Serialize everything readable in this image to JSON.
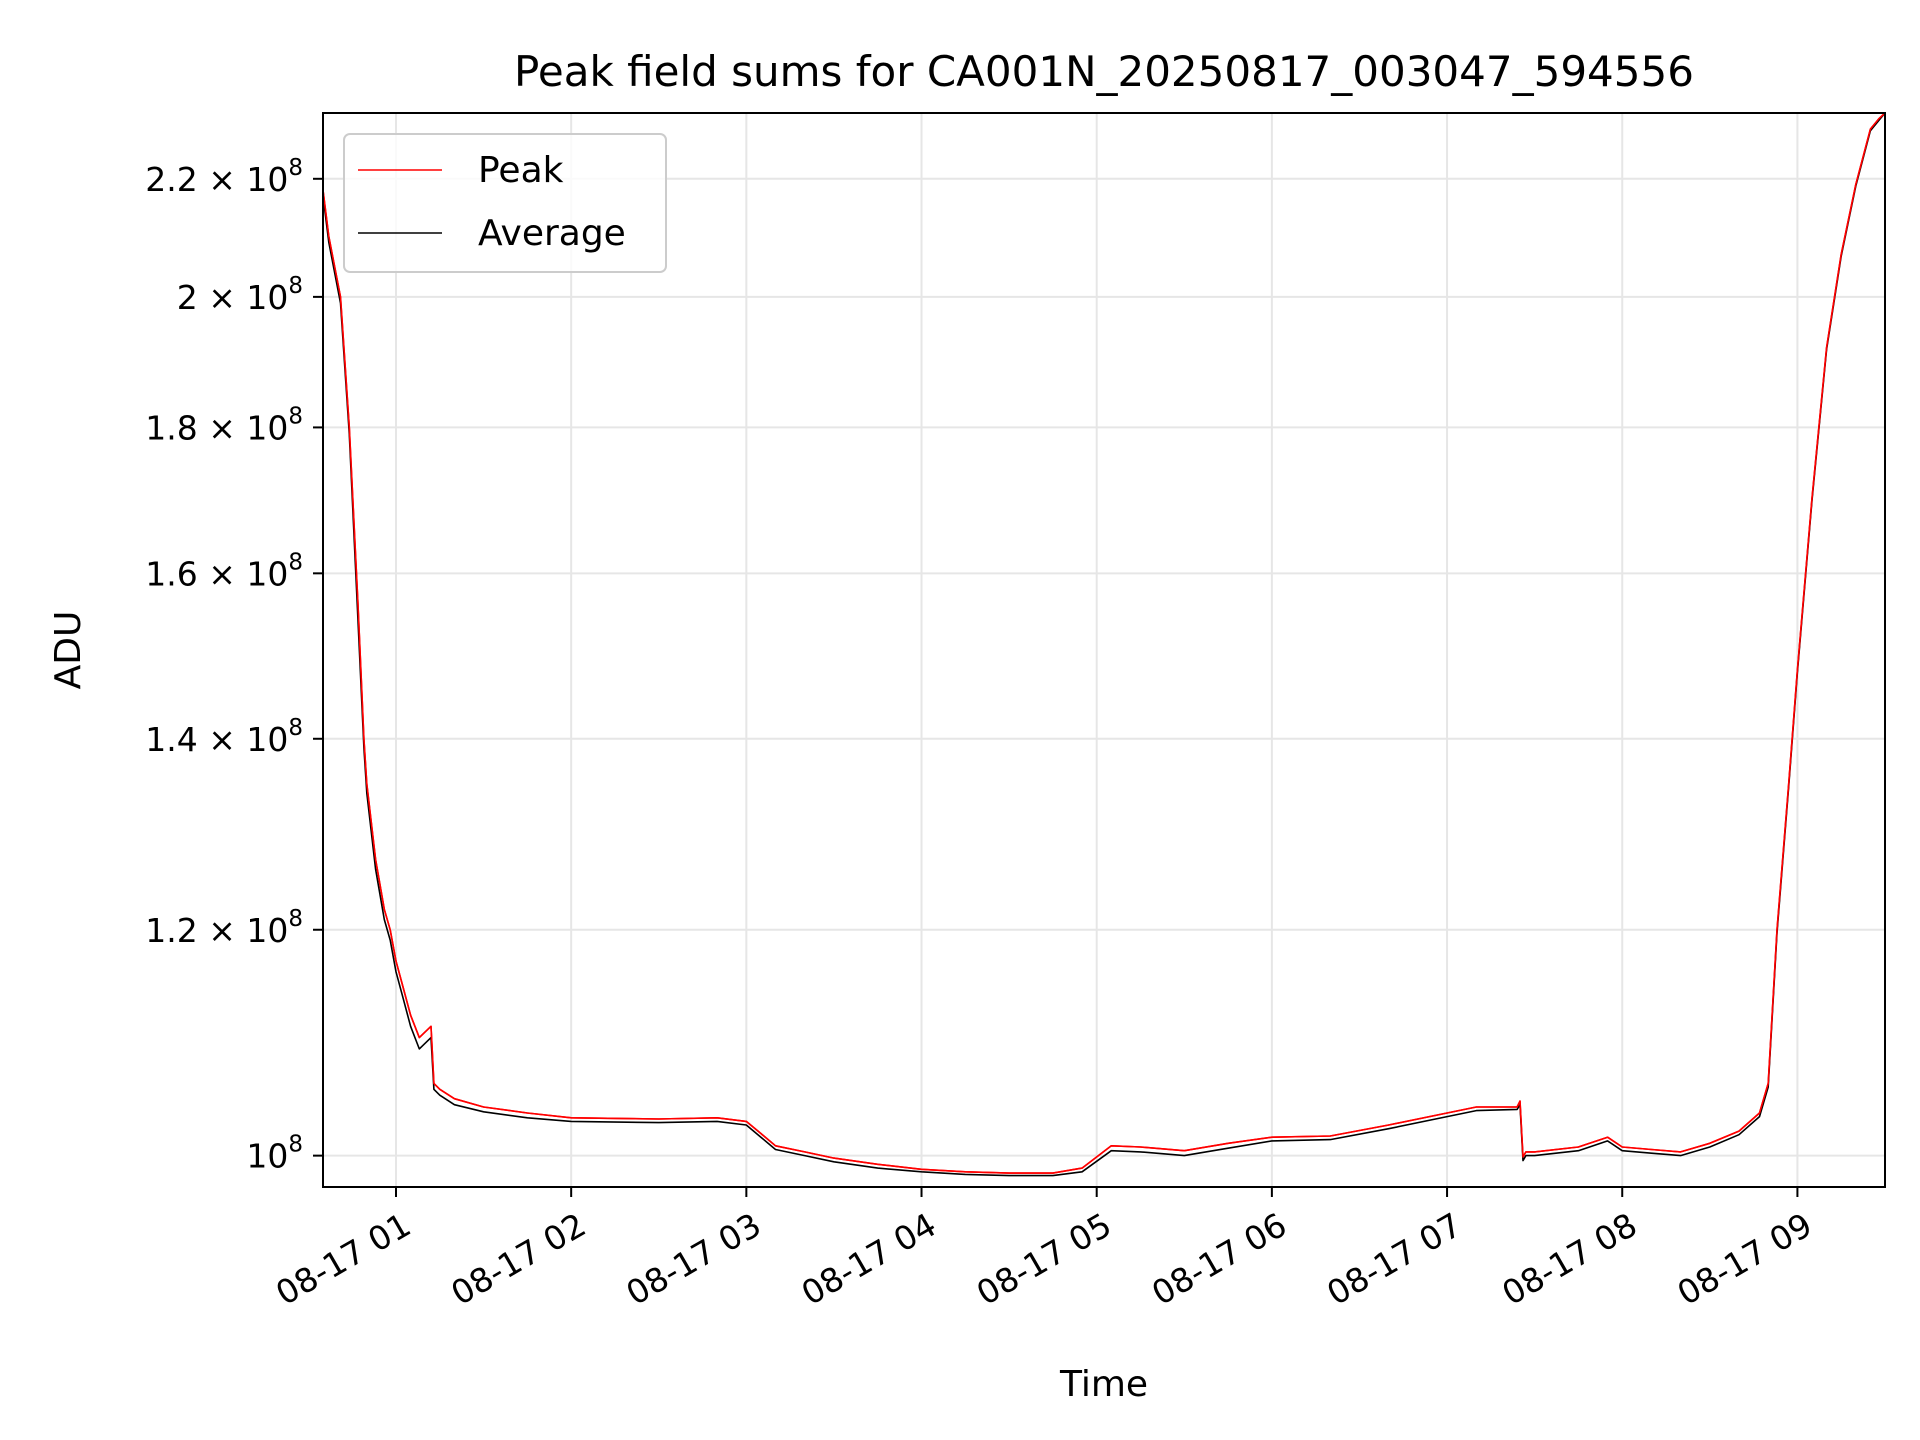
{
  "chart_data": {
    "type": "line",
    "title": "Peak field sums for CA001N_20250817_003047_594556",
    "xlabel": "Time",
    "ylabel": "ADU",
    "yscale": "log",
    "grid": true,
    "legend_position": "top-left",
    "xlim": [
      "2025-08-17 00:35",
      "2025-08-17 09:30"
    ],
    "ylim": [
      97500000,
      232000000
    ],
    "x_ticks": [
      {
        "value": "2025-08-17 01:00",
        "label": "08-17 01"
      },
      {
        "value": "2025-08-17 02:00",
        "label": "08-17 02"
      },
      {
        "value": "2025-08-17 03:00",
        "label": "08-17 03"
      },
      {
        "value": "2025-08-17 04:00",
        "label": "08-17 04"
      },
      {
        "value": "2025-08-17 05:00",
        "label": "08-17 05"
      },
      {
        "value": "2025-08-17 06:00",
        "label": "08-17 06"
      },
      {
        "value": "2025-08-17 07:00",
        "label": "08-17 07"
      },
      {
        "value": "2025-08-17 08:00",
        "label": "08-17 08"
      },
      {
        "value": "2025-08-17 09:00",
        "label": "08-17 09"
      }
    ],
    "y_ticks": [
      {
        "value": 100000000,
        "mantissa": "",
        "exponent": "8"
      },
      {
        "value": 120000000,
        "mantissa": "1.2",
        "exponent": "8"
      },
      {
        "value": 140000000,
        "mantissa": "1.4",
        "exponent": "8"
      },
      {
        "value": 160000000,
        "mantissa": "1.6",
        "exponent": "8"
      },
      {
        "value": 180000000,
        "mantissa": "1.8",
        "exponent": "8"
      },
      {
        "value": 200000000,
        "mantissa": "2",
        "exponent": "8"
      },
      {
        "value": 220000000,
        "mantissa": "2.2",
        "exponent": "8"
      }
    ],
    "series": [
      {
        "name": "Peak",
        "color": "#ff0000",
        "x": [
          "2025-08-17 00:35",
          "2025-08-17 00:37",
          "2025-08-17 00:41",
          "2025-08-17 00:44",
          "2025-08-17 00:47",
          "2025-08-17 00:49",
          "2025-08-17 00:50",
          "2025-08-17 00:53",
          "2025-08-17 00:56",
          "2025-08-17 00:58",
          "2025-08-17 01:00",
          "2025-08-17 01:02",
          "2025-08-17 01:05",
          "2025-08-17 01:08",
          "2025-08-17 01:12",
          "2025-08-17 01:13",
          "2025-08-17 01:15",
          "2025-08-17 01:20",
          "2025-08-17 01:30",
          "2025-08-17 01:45",
          "2025-08-17 02:00",
          "2025-08-17 02:30",
          "2025-08-17 02:50",
          "2025-08-17 03:00",
          "2025-08-17 03:05",
          "2025-08-17 03:10",
          "2025-08-17 03:20",
          "2025-08-17 03:30",
          "2025-08-17 03:45",
          "2025-08-17 04:00",
          "2025-08-17 04:15",
          "2025-08-17 04:30",
          "2025-08-17 04:45",
          "2025-08-17 04:55",
          "2025-08-17 05:05",
          "2025-08-17 05:15",
          "2025-08-17 05:30",
          "2025-08-17 05:45",
          "2025-08-17 06:00",
          "2025-08-17 06:20",
          "2025-08-17 06:40",
          "2025-08-17 07:00",
          "2025-08-17 07:10",
          "2025-08-17 07:24",
          "2025-08-17 07:25",
          "2025-08-17 07:26",
          "2025-08-17 07:27",
          "2025-08-17 07:30",
          "2025-08-17 07:45",
          "2025-08-17 07:55",
          "2025-08-17 08:00",
          "2025-08-17 08:10",
          "2025-08-17 08:20",
          "2025-08-17 08:30",
          "2025-08-17 08:40",
          "2025-08-17 08:47",
          "2025-08-17 08:50",
          "2025-08-17 08:53",
          "2025-08-17 08:57",
          "2025-08-17 09:00",
          "2025-08-17 09:05",
          "2025-08-17 09:10",
          "2025-08-17 09:15",
          "2025-08-17 09:20",
          "2025-08-17 09:25",
          "2025-08-17 09:28",
          "2025-08-17 09:30"
        ],
        "y": [
          218000000,
          210000000,
          200000000,
          180000000,
          156000000,
          140000000,
          135000000,
          127000000,
          122000000,
          120000000,
          117000000,
          115000000,
          112000000,
          110000000,
          111000000,
          106000000,
          105500000,
          104700000,
          104000000,
          103500000,
          103100000,
          103000000,
          103100000,
          102800000,
          101800000,
          100800000,
          100300000,
          99800000,
          99300000,
          98900000,
          98700000,
          98600000,
          98600000,
          99000000,
          100800000,
          100700000,
          100400000,
          101000000,
          101500000,
          101600000,
          102500000,
          103500000,
          104000000,
          104000000,
          104500000,
          99900000,
          100300000,
          100300000,
          100700000,
          101500000,
          100700000,
          100500000,
          100300000,
          101000000,
          102000000,
          103500000,
          106000000,
          120000000,
          135000000,
          148000000,
          170000000,
          192000000,
          207000000,
          219000000,
          229000000,
          231000000,
          232000000
        ]
      },
      {
        "name": "Average",
        "color": "#000000",
        "x": [
          "2025-08-17 00:35",
          "2025-08-17 00:37",
          "2025-08-17 00:41",
          "2025-08-17 00:44",
          "2025-08-17 00:47",
          "2025-08-17 00:49",
          "2025-08-17 00:50",
          "2025-08-17 00:53",
          "2025-08-17 00:56",
          "2025-08-17 00:58",
          "2025-08-17 01:00",
          "2025-08-17 01:02",
          "2025-08-17 01:05",
          "2025-08-17 01:08",
          "2025-08-17 01:12",
          "2025-08-17 01:13",
          "2025-08-17 01:15",
          "2025-08-17 01:20",
          "2025-08-17 01:30",
          "2025-08-17 01:45",
          "2025-08-17 02:00",
          "2025-08-17 02:30",
          "2025-08-17 02:50",
          "2025-08-17 03:00",
          "2025-08-17 03:05",
          "2025-08-17 03:10",
          "2025-08-17 03:20",
          "2025-08-17 03:30",
          "2025-08-17 03:45",
          "2025-08-17 04:00",
          "2025-08-17 04:15",
          "2025-08-17 04:30",
          "2025-08-17 04:45",
          "2025-08-17 04:55",
          "2025-08-17 05:05",
          "2025-08-17 05:15",
          "2025-08-17 05:30",
          "2025-08-17 05:45",
          "2025-08-17 06:00",
          "2025-08-17 06:20",
          "2025-08-17 06:40",
          "2025-08-17 07:00",
          "2025-08-17 07:10",
          "2025-08-17 07:24",
          "2025-08-17 07:25",
          "2025-08-17 07:26",
          "2025-08-17 07:27",
          "2025-08-17 07:30",
          "2025-08-17 07:45",
          "2025-08-17 07:55",
          "2025-08-17 08:00",
          "2025-08-17 08:10",
          "2025-08-17 08:20",
          "2025-08-17 08:30",
          "2025-08-17 08:40",
          "2025-08-17 08:47",
          "2025-08-17 08:50",
          "2025-08-17 08:53",
          "2025-08-17 08:57",
          "2025-08-17 09:00",
          "2025-08-17 09:05",
          "2025-08-17 09:10",
          "2025-08-17 09:15",
          "2025-08-17 09:20",
          "2025-08-17 09:25",
          "2025-08-17 09:28",
          "2025-08-17 09:30"
        ],
        "y": [
          217000000,
          209000000,
          199000000,
          179000000,
          154000000,
          139000000,
          134000000,
          126000000,
          121000000,
          119000000,
          116000000,
          114000000,
          111000000,
          109000000,
          110000000,
          105500000,
          105000000,
          104200000,
          103600000,
          103100000,
          102800000,
          102700000,
          102800000,
          102500000,
          101500000,
          100500000,
          100000000,
          99500000,
          99000000,
          98700000,
          98500000,
          98400000,
          98400000,
          98700000,
          100400000,
          100300000,
          100000000,
          100600000,
          101200000,
          101300000,
          102200000,
          103200000,
          103700000,
          103800000,
          104200000,
          99600000,
          100000000,
          100000000,
          100400000,
          101200000,
          100400000,
          100200000,
          100000000,
          100700000,
          101700000,
          103200000,
          105700000,
          119700000,
          134700000,
          147700000,
          169700000,
          191700000,
          206700000,
          218700000,
          228700000,
          230700000,
          232000000
        ]
      }
    ]
  }
}
